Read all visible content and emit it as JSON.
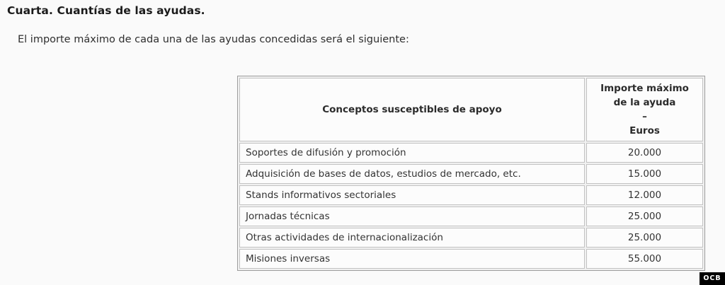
{
  "page": {
    "heading": "Cuarta. Cuantías de las ayudas.",
    "intro": "El importe máximo de cada una de las ayudas concedidas será el siguiente:"
  },
  "table": {
    "header": {
      "concept": "Conceptos susceptibles de apoyo",
      "amount_lines": [
        "Importe máximo",
        "de la ayuda",
        "–",
        "Euros"
      ]
    },
    "rows": [
      {
        "concept": "Soportes de difusión y promoción",
        "amount": "20.000"
      },
      {
        "concept": "Adquisición de bases de datos, estudios de mercado, etc.",
        "amount": "15.000"
      },
      {
        "concept": "Stands informativos sectoriales",
        "amount": "12.000"
      },
      {
        "concept": "Jornadas técnicas",
        "amount": "25.000"
      },
      {
        "concept": "Otras actividades de internacionalización",
        "amount": "25.000"
      },
      {
        "concept": "Misiones inversas",
        "amount": "55.000"
      }
    ]
  },
  "watermark": {
    "label": "OCB"
  },
  "colors": {
    "page_background": "#fafafa",
    "cell_background": "#fcfcfc",
    "outer_border": "#9c9c9c",
    "inner_border": "#c2c2c2",
    "text": "#333333",
    "heading_text": "#1b1b1b",
    "watermark_background": "#000000",
    "watermark_text": "#ffffff"
  }
}
